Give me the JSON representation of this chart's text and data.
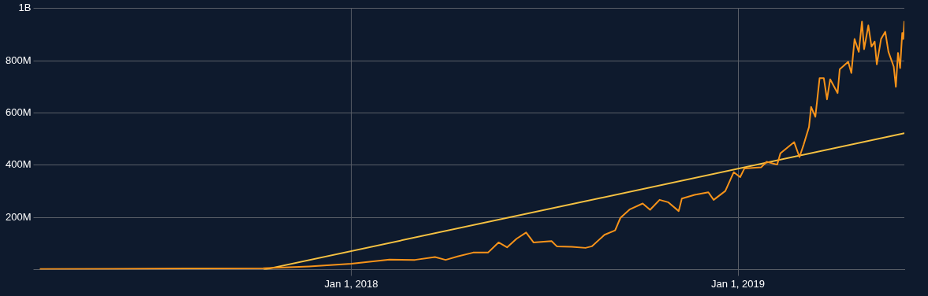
{
  "chart_data": {
    "type": "line",
    "x": [
      "2017-03-13",
      "2017-05-19",
      "2017-07-30",
      "2017-10-10",
      "2017-11-22",
      "2018-01-01",
      "2018-02-06",
      "2018-03-02",
      "2018-03-21",
      "2018-03-31",
      "2018-04-12",
      "2018-04-26",
      "2018-05-10",
      "2018-05-20",
      "2018-05-28",
      "2018-06-06",
      "2018-06-15",
      "2018-06-22",
      "2018-07-09",
      "2018-07-14",
      "2018-07-28",
      "2018-08-10",
      "2018-08-16",
      "2018-08-28",
      "2018-09-07",
      "2018-09-12",
      "2018-09-21",
      "2018-10-03",
      "2018-10-10",
      "2018-10-19",
      "2018-10-27",
      "2018-11-06",
      "2018-11-09",
      "2018-11-21",
      "2018-12-04",
      "2018-12-09",
      "2018-12-20",
      "2018-12-28",
      "2019-01-03",
      "2019-01-07",
      "2019-01-23",
      "2019-01-28",
      "2019-02-07",
      "2019-02-10",
      "2019-02-23",
      "2019-02-28",
      "2019-03-04",
      "2019-03-09",
      "2019-03-11",
      "2019-03-15",
      "2019-03-19",
      "2019-03-23",
      "2019-03-26",
      "2019-03-29",
      "2019-04-05",
      "2019-04-07",
      "2019-04-15",
      "2019-04-18",
      "2019-04-21",
      "2019-04-25",
      "2019-04-28",
      "2019-04-30",
      "2019-05-04",
      "2019-05-07",
      "2019-05-10",
      "2019-05-12",
      "2019-05-16",
      "2019-05-20",
      "2019-05-23",
      "2019-05-28",
      "2019-05-30",
      "2019-06-01",
      "2019-06-03",
      "2019-06-05",
      "2019-06-06",
      "2019-06-07"
    ],
    "series": [
      {
        "type": "line",
        "color": "#f7931a",
        "values": [
          2000000,
          3000000,
          4000000,
          5000000,
          12000000,
          22000000,
          38000000,
          37000000,
          48000000,
          37000000,
          51000000,
          65000000,
          65000000,
          104000000,
          85000000,
          118000000,
          142000000,
          104000000,
          109000000,
          89000000,
          87000000,
          83000000,
          89000000,
          133000000,
          150000000,
          198000000,
          231000000,
          253000000,
          229000000,
          267000000,
          258000000,
          224000000,
          272000000,
          286000000,
          296000000,
          267000000,
          301000000,
          373000000,
          354000000,
          387000000,
          392000000,
          413000000,
          402000000,
          445000000,
          488000000,
          431000000,
          479000000,
          546000000,
          623000000,
          585000000,
          733000000,
          733000000,
          652000000,
          729000000,
          676000000,
          767000000,
          796000000,
          753000000,
          883000000,
          834000000,
          950000000,
          844000000,
          935000000,
          854000000,
          873000000,
          786000000,
          883000000,
          911000000,
          834000000,
          777000000,
          700000000,
          830000000,
          772000000,
          906000000,
          883000000,
          950000000
        ]
      },
      {
        "type": "line",
        "color": "#f5c142",
        "x": [
          "2017-10-11",
          "2019-06-07"
        ],
        "values": [
          0,
          522000000
        ]
      }
    ],
    "xlim": [
      "2017-03-13",
      "2019-06-07"
    ],
    "xticks": [
      {
        "value": "2018-01-01",
        "label": "Jan 1, 2018"
      },
      {
        "value": "2019-01-01",
        "label": "Jan 1, 2019"
      }
    ],
    "ylim": [
      0,
      1000000000
    ],
    "yticks": [
      {
        "value": 0,
        "label": null
      },
      {
        "value": 200000000,
        "label": "200M"
      },
      {
        "value": 400000000,
        "label": "400M"
      },
      {
        "value": 600000000,
        "label": "600M"
      },
      {
        "value": 800000000,
        "label": "800M"
      },
      {
        "value": 1000000000,
        "label": "1B"
      }
    ],
    "grid": true,
    "legend": false,
    "marker": "none",
    "line_style": "solid"
  }
}
